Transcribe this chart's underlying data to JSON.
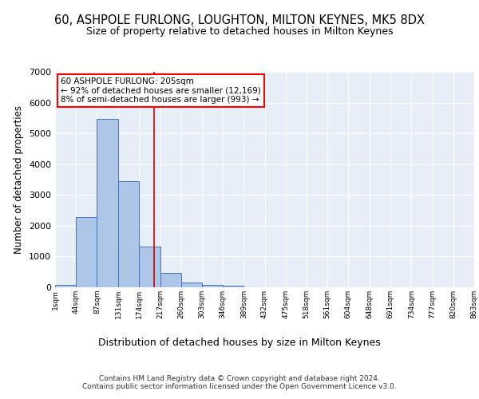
{
  "title": "60, ASHPOLE FURLONG, LOUGHTON, MILTON KEYNES, MK5 8DX",
  "subtitle": "Size of property relative to detached houses in Milton Keynes",
  "xlabel": "Distribution of detached houses by size in Milton Keynes",
  "ylabel": "Number of detached properties",
  "footer_line1": "Contains HM Land Registry data © Crown copyright and database right 2024.",
  "footer_line2": "Contains public sector information licensed under the Open Government Licence v3.0.",
  "annotation_line1": "60 ASHPOLE FURLONG: 205sqm",
  "annotation_line2": "← 92% of detached houses are smaller (12,169)",
  "annotation_line3": "8% of semi-detached houses are larger (993) →",
  "property_size": 205,
  "bin_edges": [
    1,
    44,
    87,
    131,
    174,
    217,
    260,
    303,
    346,
    389,
    432,
    475,
    518,
    561,
    604,
    648,
    691,
    734,
    777,
    820,
    863
  ],
  "bar_heights": [
    80,
    2280,
    5460,
    3440,
    1310,
    460,
    160,
    80,
    50,
    0,
    0,
    0,
    0,
    0,
    0,
    0,
    0,
    0,
    0,
    0
  ],
  "bar_color": "#aec6e8",
  "bar_edge_color": "#4472c4",
  "vline_color": "#cc0000",
  "vline_x": 205,
  "ylim": [
    0,
    7000
  ],
  "xlim": [
    1,
    863
  ],
  "background_color": "#e8eef8",
  "grid_color": "#ffffff",
  "tick_labels": [
    "1sqm",
    "44sqm",
    "87sqm",
    "131sqm",
    "174sqm",
    "217sqm",
    "260sqm",
    "303sqm",
    "346sqm",
    "389sqm",
    "432sqm",
    "475sqm",
    "518sqm",
    "561sqm",
    "604sqm",
    "648sqm",
    "691sqm",
    "734sqm",
    "777sqm",
    "820sqm",
    "863sqm"
  ]
}
